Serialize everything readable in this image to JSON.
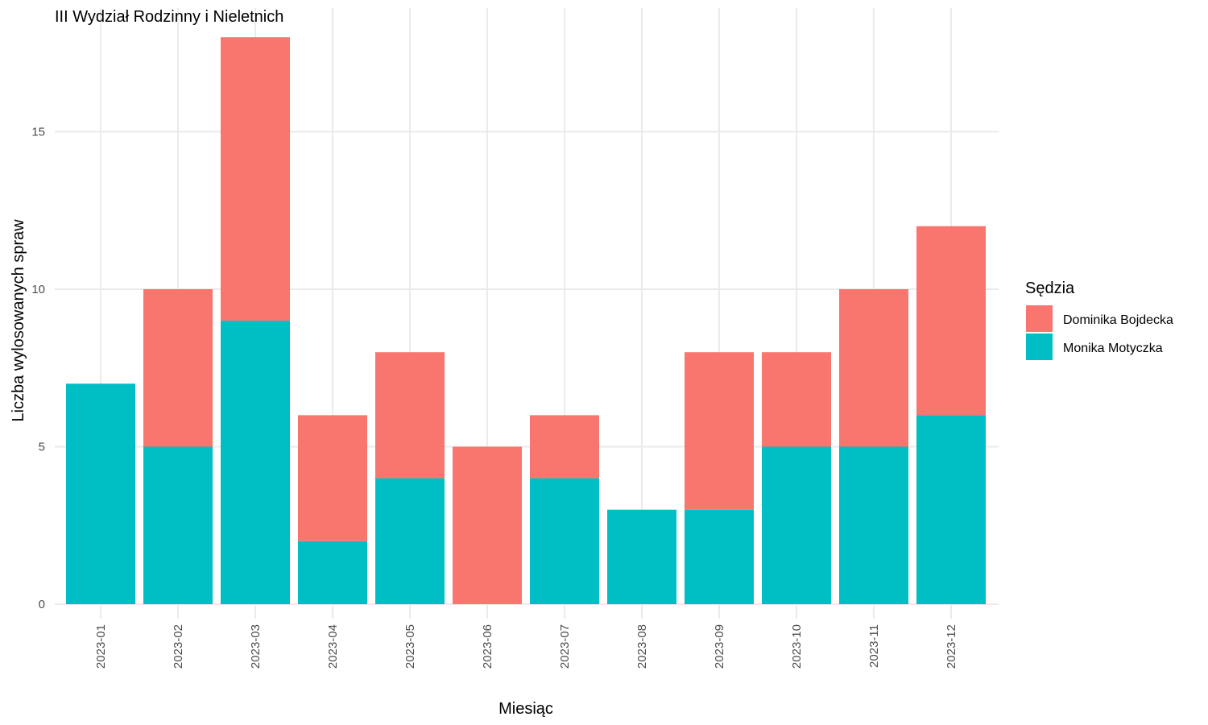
{
  "chart_data": {
    "type": "bar",
    "stacked": true,
    "title": "III Wydział Rodzinny i Nieletnich",
    "xlabel": "Miesiąc",
    "ylabel": "Liczba wylosowanych spraw",
    "ylim": [
      0,
      18.9
    ],
    "yticks": [
      0,
      5,
      10,
      15
    ],
    "grid": true,
    "legend": {
      "title": "Sędzia",
      "position": "right"
    },
    "categories": [
      "2023-01",
      "2023-02",
      "2023-03",
      "2023-04",
      "2023-05",
      "2023-06",
      "2023-07",
      "2023-08",
      "2023-09",
      "2023-10",
      "2023-11",
      "2023-12"
    ],
    "series": [
      {
        "name": "Monika Motyczka",
        "color": "#00BFC4",
        "values": [
          7,
          5,
          9,
          2,
          4,
          0,
          4,
          3,
          3,
          5,
          5,
          6
        ]
      },
      {
        "name": "Dominika Bojdecka",
        "color": "#F8766D",
        "values": [
          0,
          5,
          9,
          4,
          4,
          5,
          2,
          0,
          5,
          3,
          5,
          6
        ]
      }
    ],
    "legend_order": [
      "Dominika Bojdecka",
      "Monika Motyczka"
    ]
  }
}
